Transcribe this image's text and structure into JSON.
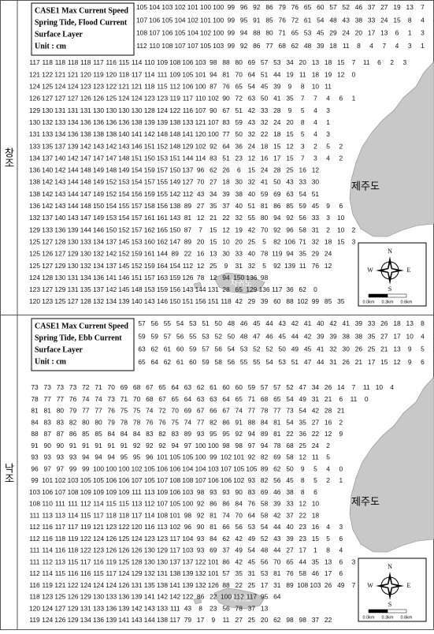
{
  "panels": [
    {
      "label": "창조",
      "legend": [
        "CASE1 Max Current Speed",
        "Spring Tide, Flood Current",
        "Surface Layer",
        "Unit : cm"
      ],
      "rows": [
        [
          105,
          104,
          103,
          102,
          101,
          100,
          100,
          99,
          96,
          92,
          86,
          79,
          76,
          65,
          60,
          57,
          52,
          46,
          37,
          27,
          19,
          13,
          7,
          3
        ],
        [
          107,
          106,
          105,
          104,
          102,
          101,
          100,
          99,
          95,
          91,
          85,
          76,
          72,
          61,
          54,
          48,
          43,
          38,
          33,
          24,
          15,
          8,
          4,
          4
        ],
        [
          108,
          107,
          106,
          105,
          104,
          102,
          100,
          99,
          94,
          88,
          80,
          71,
          65,
          53,
          45,
          29,
          24,
          20,
          17,
          13,
          6,
          1,
          3,
          3
        ],
        [
          112,
          110,
          108,
          107,
          107,
          105,
          103,
          99,
          92,
          86,
          77,
          68,
          62,
          48,
          39,
          18,
          11,
          8,
          4,
          7,
          4,
          3,
          1
        ],
        [
          117,
          118,
          118,
          118,
          118,
          117,
          116,
          115,
          114,
          110,
          109,
          108,
          106,
          103,
          98,
          88,
          80,
          69,
          57,
          53,
          34,
          20,
          13,
          18,
          15,
          7,
          11,
          6,
          2,
          3
        ],
        [
          121,
          122,
          121,
          121,
          120,
          119,
          120,
          118,
          117,
          114,
          111,
          109,
          105,
          101,
          94,
          81,
          70,
          64,
          51,
          44,
          19,
          11,
          18,
          19,
          12,
          0
        ],
        [
          124,
          125,
          124,
          124,
          123,
          123,
          122,
          121,
          121,
          118,
          115,
          112,
          106,
          100,
          87,
          76,
          65,
          54,
          45,
          39,
          9,
          8,
          10,
          11
        ],
        [
          126,
          127,
          127,
          127,
          126,
          126,
          125,
          124,
          124,
          123,
          123,
          119,
          117,
          110,
          102,
          90,
          72,
          63,
          50,
          41,
          35,
          7,
          7,
          4,
          6,
          1
        ],
        [
          129,
          130,
          131,
          131,
          131,
          130,
          130,
          130,
          130,
          128,
          124,
          122,
          116,
          107,
          90,
          67,
          51,
          42,
          33,
          28,
          9,
          5,
          4,
          3
        ],
        [
          130,
          132,
          133,
          134,
          136,
          136,
          136,
          136,
          138,
          139,
          139,
          138,
          133,
          121,
          107,
          83,
          59,
          43,
          32,
          24,
          20,
          8,
          4,
          1
        ],
        [
          131,
          133,
          134,
          136,
          138,
          138,
          138,
          140,
          141,
          142,
          148,
          148,
          141,
          120,
          100,
          77,
          50,
          32,
          22,
          18,
          15,
          5,
          4,
          3
        ],
        [
          133,
          135,
          137,
          139,
          142,
          143,
          142,
          143,
          146,
          151,
          152,
          148,
          129,
          102,
          92,
          64,
          36,
          24,
          18,
          15,
          12,
          3,
          2,
          5,
          2
        ],
        [
          134,
          137,
          140,
          142,
          147,
          147,
          147,
          148,
          151,
          150,
          153,
          151,
          144,
          114,
          83,
          51,
          23,
          12,
          16,
          17,
          15,
          7,
          3,
          4,
          2
        ],
        [
          136,
          140,
          142,
          144,
          148,
          149,
          148,
          149,
          154,
          159,
          157,
          150,
          137,
          96,
          62,
          26,
          6,
          15,
          24,
          28,
          25,
          16,
          12
        ],
        [
          138,
          142,
          143,
          144,
          148,
          149,
          152,
          153,
          154,
          157,
          155,
          149,
          127,
          70,
          27,
          18,
          30,
          32,
          41,
          50,
          43,
          33,
          30
        ],
        [
          138,
          142,
          143,
          144,
          147,
          149,
          152,
          154,
          156,
          159,
          155,
          142,
          112,
          43,
          34,
          39,
          38,
          40,
          59,
          69,
          63,
          54,
          51
        ],
        [
          136,
          142,
          143,
          144,
          148,
          150,
          154,
          155,
          157,
          158,
          156,
          138,
          89,
          27,
          35,
          37,
          40,
          51,
          81,
          86,
          85,
          59,
          45,
          9,
          6
        ],
        [
          132,
          137,
          140,
          143,
          147,
          149,
          153,
          154,
          157,
          161,
          161,
          143,
          81,
          12,
          21,
          22,
          32,
          55,
          80,
          94,
          92,
          56,
          33,
          3,
          10
        ],
        [
          129,
          133,
          136,
          139,
          144,
          146,
          150,
          152,
          157,
          162,
          165,
          150,
          87,
          7,
          15,
          12,
          19,
          42,
          70,
          92,
          96,
          58,
          31,
          2,
          10,
          2
        ],
        [
          125,
          127,
          128,
          130,
          133,
          134,
          137,
          145,
          153,
          160,
          162,
          147,
          89,
          20,
          15,
          10,
          20,
          25,
          5,
          82,
          106,
          71,
          32,
          18,
          15,
          3
        ],
        [
          125,
          126,
          127,
          129,
          130,
          132,
          142,
          152,
          159,
          161,
          144,
          89,
          22,
          16,
          13,
          30,
          33,
          40,
          78,
          119,
          94,
          35,
          29,
          24
        ],
        [
          125,
          127,
          129,
          130,
          132,
          134,
          137,
          145,
          152,
          159,
          164,
          154,
          112,
          12,
          25,
          9,
          31,
          32,
          5,
          92,
          139,
          11,
          76,
          12
        ],
        [
          124,
          128,
          130,
          131,
          134,
          136,
          141,
          146,
          151,
          157,
          163,
          159,
          126,
          78,
          12,
          94,
          150,
          136,
          98
        ],
        [
          123,
          127,
          129,
          131,
          135,
          137,
          142,
          145,
          148,
          153,
          159,
          156,
          143,
          144,
          131,
          28,
          65,
          129,
          136,
          117,
          36,
          62,
          0
        ],
        [
          120,
          123,
          125,
          127,
          128,
          132,
          134,
          139,
          140,
          143,
          146,
          150,
          151,
          156,
          151,
          118,
          42,
          29,
          39,
          60,
          88,
          102,
          99,
          85,
          35
        ]
      ],
      "land_label": "제주도",
      "island_label": "차귀도",
      "compass": {
        "n": "N",
        "s": "S",
        "e": "E",
        "w": "W"
      },
      "scale": [
        "0.0km",
        "0.3km",
        "0.6km"
      ]
    },
    {
      "label": "낙조",
      "legend": [
        "CASE1 Max Current Speed",
        "Spring Tide, Ebb Current",
        "Surface Layer",
        "Unit : cm"
      ],
      "rows": [
        [
          57,
          56,
          55,
          54,
          53,
          51,
          50,
          48,
          46,
          45,
          44,
          43,
          42,
          41,
          40,
          42,
          41,
          39,
          33,
          26,
          18,
          13,
          8,
          2
        ],
        [
          59,
          59,
          57,
          56,
          55,
          53,
          52,
          50,
          48,
          47,
          46,
          45,
          44,
          42,
          39,
          39,
          38,
          38,
          35,
          27,
          17,
          10,
          4,
          2
        ],
        [
          63,
          62,
          61,
          60,
          59,
          57,
          56,
          54,
          53,
          52,
          52,
          50,
          49,
          45,
          41,
          32,
          30,
          26,
          25,
          21,
          13,
          9,
          5,
          2
        ],
        [
          65,
          64,
          62,
          61,
          60,
          59,
          58,
          56,
          55,
          55,
          54,
          53,
          51,
          47,
          44,
          31,
          26,
          21,
          17,
          15,
          12,
          9,
          6,
          2
        ],
        [
          73,
          73,
          73,
          73,
          72,
          71,
          70,
          69,
          68,
          67,
          65,
          64,
          63,
          62,
          61,
          60,
          60,
          59,
          57,
          57,
          52,
          47,
          34,
          26,
          14,
          7,
          11,
          10,
          4
        ],
        [
          78,
          77,
          77,
          76,
          74,
          74,
          73,
          71,
          70,
          68,
          67,
          65,
          64,
          63,
          63,
          64,
          65,
          71,
          68,
          65,
          54,
          49,
          31,
          21,
          6,
          11,
          0
        ],
        [
          81,
          81,
          80,
          79,
          77,
          77,
          76,
          75,
          75,
          74,
          72,
          70,
          69,
          67,
          66,
          67,
          74,
          77,
          78,
          77,
          73,
          54,
          42,
          28,
          21
        ],
        [
          84,
          83,
          83,
          82,
          80,
          80,
          79,
          78,
          78,
          76,
          76,
          75,
          74,
          77,
          82,
          86,
          91,
          88,
          84,
          81,
          54,
          35,
          27,
          16,
          2
        ],
        [
          88,
          87,
          87,
          86,
          85,
          85,
          84,
          84,
          84,
          83,
          82,
          83,
          89,
          93,
          95,
          95,
          92,
          94,
          89,
          81,
          22,
          36,
          22,
          12,
          9
        ],
        [
          91,
          90,
          90,
          91,
          91,
          91,
          91,
          91,
          92,
          92,
          92,
          94,
          97,
          100,
          100,
          98,
          98,
          97,
          94,
          78,
          68,
          25,
          24,
          2
        ],
        [
          93,
          93,
          93,
          93,
          94,
          94,
          94,
          95,
          95,
          96,
          101,
          105,
          105,
          100,
          99,
          102,
          101,
          92,
          82,
          69,
          58,
          12,
          11,
          5
        ],
        [
          96,
          97,
          97,
          99,
          99,
          100,
          100,
          100,
          102,
          105,
          106,
          106,
          104,
          104,
          103,
          107,
          105,
          105,
          89,
          62,
          50,
          9,
          5,
          4,
          0
        ],
        [
          99,
          101,
          102,
          103,
          105,
          105,
          106,
          106,
          107,
          105,
          107,
          108,
          108,
          107,
          106,
          106,
          102,
          93,
          82,
          56,
          45,
          8,
          5,
          2,
          1
        ],
        [
          103,
          106,
          107,
          108,
          109,
          109,
          109,
          109,
          111,
          113,
          109,
          106,
          103,
          98,
          93,
          93,
          90,
          83,
          69,
          46,
          38,
          8,
          6
        ],
        [
          108,
          110,
          111,
          111,
          112,
          114,
          115,
          115,
          113,
          112,
          107,
          105,
          100,
          92,
          86,
          86,
          84,
          76,
          58,
          39,
          33,
          12,
          10
        ],
        [
          111,
          113,
          113,
          114,
          115,
          117,
          118,
          118,
          117,
          114,
          108,
          101,
          98,
          92,
          81,
          74,
          70,
          64,
          58,
          42,
          37,
          22,
          18
        ],
        [
          112,
          116,
          117,
          117,
          119,
          121,
          123,
          122,
          120,
          116,
          113,
          102,
          96,
          90,
          81,
          66,
          56,
          53,
          54,
          44,
          40,
          23,
          16,
          4,
          3
        ],
        [
          112,
          116,
          118,
          119,
          122,
          124,
          126,
          125,
          124,
          123,
          123,
          117,
          104,
          93,
          84,
          62,
          42,
          49,
          52,
          43,
          39,
          23,
          15,
          5,
          6
        ],
        [
          111,
          114,
          116,
          118,
          122,
          123,
          126,
          126,
          126,
          130,
          129,
          117,
          103,
          93,
          69,
          37,
          49,
          54,
          48,
          44,
          27,
          17,
          1,
          8,
          4
        ],
        [
          111,
          112,
          113,
          115,
          117,
          116,
          119,
          125,
          128,
          130,
          130,
          137,
          137,
          122,
          101,
          86,
          42,
          45,
          56,
          70,
          65,
          44,
          35,
          13,
          6,
          3
        ],
        [
          112,
          114,
          115,
          116,
          116,
          115,
          117,
          124,
          129,
          132,
          131,
          138,
          139,
          132,
          101,
          57,
          35,
          31,
          53,
          81,
          76,
          58,
          46,
          17,
          6
        ],
        [
          116,
          119,
          121,
          122,
          124,
          124,
          124,
          126,
          131,
          135,
          138,
          141,
          139,
          132,
          126,
          88,
          22,
          25,
          17,
          31,
          89,
          108,
          103,
          26,
          49,
          7
        ],
        [
          118,
          123,
          125,
          126,
          129,
          130,
          133,
          136,
          139,
          141,
          142,
          142,
          122,
          86,
          22,
          100,
          112,
          117,
          95,
          64
        ],
        [
          120,
          124,
          127,
          129,
          131,
          133,
          136,
          139,
          142,
          143,
          133,
          111,
          43,
          8,
          23,
          56,
          78,
          37,
          13
        ],
        [
          119,
          124,
          126,
          129,
          134,
          136,
          139,
          141,
          143,
          144,
          138,
          117,
          79,
          17,
          9,
          11,
          27,
          25,
          20,
          62,
          98,
          98,
          37,
          22
        ]
      ],
      "land_label": "제주도",
      "island_label": "차귀도",
      "compass": {
        "n": "N",
        "s": "S",
        "e": "E",
        "w": "W"
      },
      "scale": [
        "0.0km",
        "0.3km",
        "0.6km"
      ]
    }
  ]
}
